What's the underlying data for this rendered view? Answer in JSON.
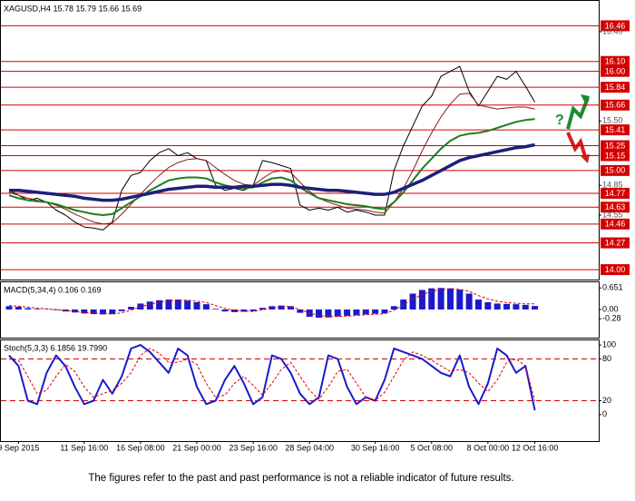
{
  "chart_data": [
    {
      "type": "line",
      "title": "XAGUSD,H4 15.78 15.79 15.66 15.69",
      "ylim": [
        13.9,
        16.72
      ],
      "yticks": [
        {
          "value": 16.4,
          "label": "16.40"
        },
        {
          "value": 15.5,
          "label": "15.50"
        },
        {
          "value": 14.85,
          "label": "14.85"
        },
        {
          "value": 14.55,
          "label": "14.55"
        }
      ],
      "levels": [
        {
          "value": 16.46,
          "label": "16.46"
        },
        {
          "value": 16.1,
          "label": "16.10"
        },
        {
          "value": 16.0,
          "label": "16.00"
        },
        {
          "value": 15.84,
          "label": "15.84"
        },
        {
          "value": 15.66,
          "label": "15.66"
        },
        {
          "value": 15.41,
          "label": "15.41"
        },
        {
          "value": 15.25,
          "label": "15.25"
        },
        {
          "value": 15.15,
          "label": "15.15"
        },
        {
          "value": 15.0,
          "label": "15.00"
        },
        {
          "value": 14.77,
          "label": "14.77"
        },
        {
          "value": 14.63,
          "label": "14.63"
        },
        {
          "value": 14.46,
          "label": "14.46"
        },
        {
          "value": 14.27,
          "label": "14.27"
        },
        {
          "value": 14.0,
          "label": "14.00"
        }
      ],
      "level_color": "#d40000",
      "annotation": "?",
      "series": [
        {
          "color": "#000000",
          "width": 1,
          "values": [
            14.8,
            14.75,
            14.7,
            14.72,
            14.68,
            14.6,
            14.55,
            14.48,
            14.43,
            14.42,
            14.4,
            14.48,
            14.8,
            14.95,
            14.98,
            15.1,
            15.18,
            15.22,
            15.15,
            15.18,
            15.12,
            15.1,
            14.85,
            14.8,
            14.82,
            14.8,
            14.85,
            15.1,
            15.08,
            15.05,
            15.02,
            14.65,
            14.6,
            14.62,
            14.6,
            14.63,
            14.58,
            14.6,
            14.58,
            14.55,
            14.55,
            15.0,
            15.25,
            15.45,
            15.65,
            15.75,
            15.95,
            16.0,
            16.05,
            15.8,
            15.65,
            15.8,
            15.95,
            15.92,
            16.0,
            15.85,
            15.69
          ]
        },
        {
          "color": "#8b1a1a",
          "width": 1,
          "values": [
            14.78,
            14.75,
            14.72,
            14.7,
            14.68,
            14.65,
            14.61,
            14.56,
            14.52,
            14.48,
            14.46,
            14.47,
            14.56,
            14.66,
            14.76,
            14.86,
            14.95,
            15.03,
            15.08,
            15.11,
            15.12,
            15.1,
            15.03,
            14.96,
            14.9,
            14.86,
            14.85,
            14.92,
            14.98,
            15.0,
            14.98,
            14.88,
            14.79,
            14.72,
            14.68,
            14.65,
            14.62,
            14.61,
            14.6,
            14.58,
            14.57,
            14.68,
            14.82,
            15.0,
            15.2,
            15.38,
            15.54,
            15.67,
            15.77,
            15.78,
            15.66,
            15.64,
            15.62,
            15.63,
            15.64,
            15.64,
            15.62
          ]
        },
        {
          "color": "#1e7d1e",
          "width": 2,
          "values": [
            14.75,
            14.72,
            14.7,
            14.69,
            14.68,
            14.66,
            14.63,
            14.6,
            14.58,
            14.56,
            14.55,
            14.56,
            14.62,
            14.68,
            14.74,
            14.8,
            14.85,
            14.9,
            14.92,
            14.93,
            14.93,
            14.92,
            14.88,
            14.85,
            14.83,
            14.82,
            14.83,
            14.88,
            14.92,
            14.93,
            14.9,
            14.83,
            14.77,
            14.72,
            14.7,
            14.68,
            14.66,
            14.65,
            14.64,
            14.62,
            14.61,
            14.68,
            14.78,
            14.9,
            15.02,
            15.12,
            15.22,
            15.3,
            15.35,
            15.37,
            15.38,
            15.4,
            15.43,
            15.46,
            15.49,
            15.51,
            15.52
          ]
        },
        {
          "color": "#1c1f7a",
          "width": 3.5,
          "values": [
            14.8,
            14.8,
            14.79,
            14.78,
            14.77,
            14.76,
            14.75,
            14.74,
            14.72,
            14.71,
            14.7,
            14.7,
            14.71,
            14.73,
            14.75,
            14.77,
            14.79,
            14.81,
            14.82,
            14.83,
            14.84,
            14.84,
            14.83,
            14.83,
            14.83,
            14.84,
            14.84,
            14.85,
            14.86,
            14.86,
            14.85,
            14.83,
            14.82,
            14.81,
            14.8,
            14.8,
            14.79,
            14.78,
            14.77,
            14.76,
            14.76,
            14.78,
            14.82,
            14.86,
            14.9,
            14.95,
            15.0,
            15.05,
            15.1,
            15.13,
            15.15,
            15.17,
            15.19,
            15.21,
            15.23,
            15.24,
            15.26
          ]
        }
      ]
    },
    {
      "type": "bar",
      "title": "MACD(5,34,4) 0.106 0.169",
      "ylim": [
        -0.85,
        0.85
      ],
      "yticks": [
        {
          "value": 0.651,
          "label": "0.651"
        },
        {
          "value": 0,
          "label": "0.00"
        },
        {
          "value": -0.28,
          "label": "-0.28"
        }
      ],
      "series": [
        {
          "color": "#1a1acc",
          "values": [
            0.1,
            0.08,
            0.04,
            0.02,
            0.01,
            -0.02,
            -0.06,
            -0.09,
            -0.12,
            -0.14,
            -0.15,
            -0.14,
            -0.05,
            0.08,
            0.18,
            0.24,
            0.28,
            0.3,
            0.3,
            0.27,
            0.22,
            0.16,
            0.02,
            -0.06,
            -0.08,
            -0.07,
            -0.05,
            0.05,
            0.1,
            0.12,
            0.1,
            -0.1,
            -0.22,
            -0.25,
            -0.24,
            -0.21,
            -0.19,
            -0.17,
            -0.15,
            -0.13,
            -0.12,
            0.1,
            0.3,
            0.48,
            0.59,
            0.64,
            0.651,
            0.64,
            0.6,
            0.48,
            0.3,
            0.22,
            0.18,
            0.17,
            0.16,
            0.14,
            0.106
          ]
        },
        {
          "color": "#e00000",
          "style": "dotted",
          "values": [
            0.12,
            0.1,
            0.07,
            0.04,
            0.02,
            0.0,
            -0.03,
            -0.06,
            -0.09,
            -0.11,
            -0.13,
            -0.14,
            -0.1,
            -0.02,
            0.08,
            0.16,
            0.22,
            0.26,
            0.28,
            0.28,
            0.25,
            0.21,
            0.12,
            0.03,
            -0.03,
            -0.05,
            -0.06,
            -0.01,
            0.04,
            0.08,
            0.09,
            0.0,
            -0.11,
            -0.18,
            -0.21,
            -0.21,
            -0.2,
            -0.18,
            -0.16,
            -0.14,
            -0.13,
            -0.02,
            0.14,
            0.31,
            0.45,
            0.55,
            0.6,
            0.62,
            0.61,
            0.55,
            0.42,
            0.32,
            0.25,
            0.21,
            0.19,
            0.17,
            0.169
          ]
        }
      ]
    },
    {
      "type": "line",
      "title": "Stoch(5,3,3) 6.1856 19.7990",
      "ylim": [
        -38,
        108
      ],
      "yticks": [
        100,
        80,
        20,
        0
      ],
      "levels": [
        80,
        20
      ],
      "level_color": "#d40000",
      "categories": [
        null,
        "9 Sep 2015",
        null,
        null,
        null,
        null,
        null,
        null,
        "11 Sep 16:00",
        null,
        null,
        null,
        null,
        null,
        "16 Sep 08:00",
        null,
        null,
        null,
        null,
        null,
        "21 Sep 00:00",
        null,
        null,
        null,
        null,
        null,
        "23 Sep 16:00",
        null,
        null,
        null,
        null,
        null,
        "28 Sep 04:00",
        null,
        null,
        null,
        null,
        null,
        null,
        "30 Sep 16:00",
        null,
        null,
        null,
        null,
        null,
        "5 Oct 08:00",
        null,
        null,
        null,
        null,
        null,
        "8 Oct 00:00",
        null,
        null,
        null,
        null,
        "12 Oct 16:00"
      ],
      "series": [
        {
          "color": "#1a1acc",
          "width": 2,
          "values": [
            85,
            70,
            20,
            15,
            60,
            85,
            70,
            40,
            15,
            20,
            50,
            30,
            55,
            95,
            100,
            90,
            75,
            60,
            95,
            85,
            40,
            15,
            20,
            50,
            70,
            45,
            15,
            25,
            85,
            80,
            60,
            30,
            15,
            25,
            85,
            80,
            40,
            15,
            25,
            20,
            50,
            95,
            90,
            85,
            80,
            70,
            60,
            55,
            85,
            40,
            15,
            45,
            95,
            85,
            60,
            70,
            6.1856
          ]
        },
        {
          "color": "#e00000",
          "width": 1,
          "style": "dotted",
          "values": [
            80,
            78,
            55,
            30,
            35,
            55,
            72,
            62,
            40,
            25,
            30,
            35,
            45,
            60,
            85,
            95,
            88,
            75,
            75,
            80,
            72,
            45,
            25,
            28,
            45,
            55,
            42,
            28,
            45,
            65,
            75,
            55,
            35,
            22,
            40,
            62,
            65,
            45,
            25,
            20,
            32,
            55,
            78,
            90,
            85,
            78,
            70,
            62,
            65,
            60,
            45,
            33,
            50,
            75,
            80,
            70,
            19.799
          ]
        }
      ]
    }
  ],
  "footer": "The figures refer to the past and past performance is not a reliable indicator of future results."
}
